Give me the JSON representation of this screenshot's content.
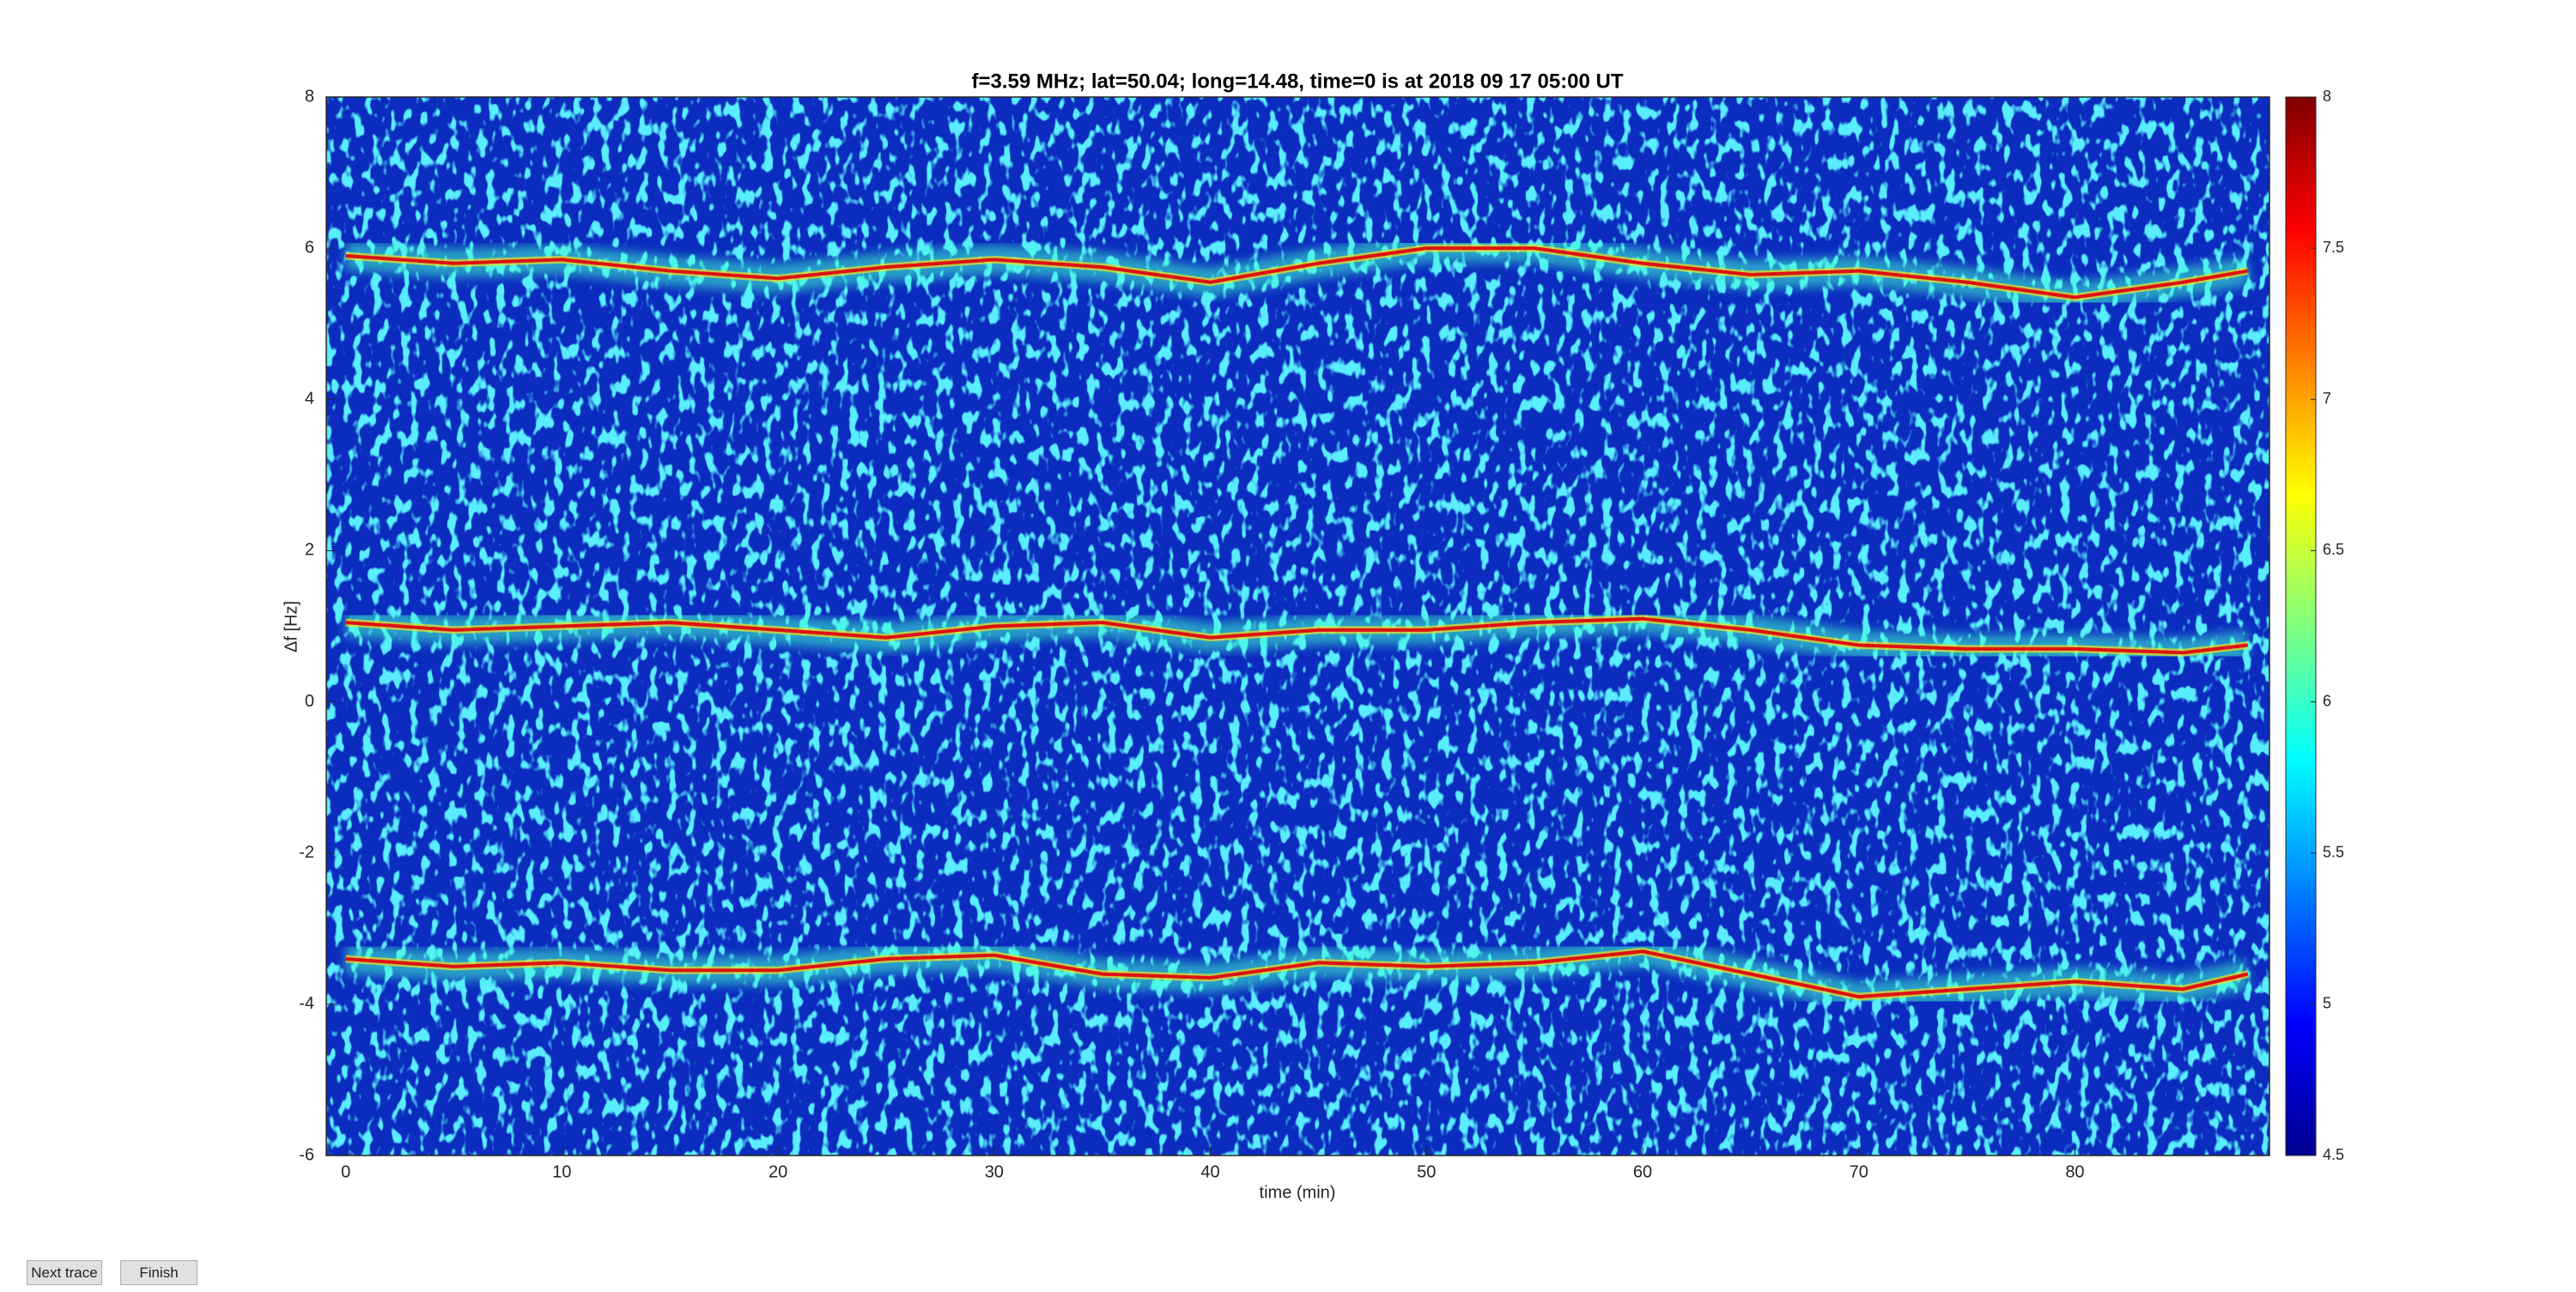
{
  "chart_data": {
    "type": "heatmap",
    "title": "f=3.59 MHz;  lat=50.04; long=14.48, time=0 is at 2018 09 17 05:00 UT",
    "x_label": "time (min)",
    "y_label": "Δf [Hz]",
    "xlim": [
      -0.9,
      89
    ],
    "xticks": [
      0,
      10,
      20,
      30,
      40,
      50,
      60,
      70,
      80
    ],
    "ylim": [
      -6,
      8
    ],
    "yticks": [
      -6,
      -4,
      -2,
      0,
      2,
      4,
      6,
      8
    ],
    "colormap": "jet",
    "clim": [
      4.5,
      8
    ],
    "cticks": [
      4.5,
      5,
      5.5,
      6,
      6.5,
      7,
      7.5,
      8
    ],
    "x": [
      0,
      5,
      10,
      15,
      20,
      25,
      30,
      35,
      40,
      45,
      50,
      55,
      60,
      65,
      70,
      75,
      80,
      85,
      88
    ],
    "series": [
      {
        "color": "#e01010",
        "values": [
          5.9,
          5.8,
          5.85,
          5.7,
          5.6,
          5.75,
          5.85,
          5.75,
          5.55,
          5.8,
          6.0,
          6.0,
          5.8,
          5.65,
          5.7,
          5.55,
          5.35,
          5.55,
          5.7
        ]
      },
      {
        "color": "#e01010",
        "values": [
          1.05,
          0.95,
          1.0,
          1.05,
          0.95,
          0.85,
          1.0,
          1.05,
          0.85,
          0.95,
          0.95,
          1.05,
          1.1,
          0.95,
          0.75,
          0.7,
          0.7,
          0.65,
          0.75
        ]
      },
      {
        "color": "#e01010",
        "values": [
          -3.4,
          -3.5,
          -3.45,
          -3.55,
          -3.55,
          -3.4,
          -3.35,
          -3.6,
          -3.65,
          -3.45,
          -3.5,
          -3.45,
          -3.3,
          -3.6,
          -3.9,
          -3.8,
          -3.7,
          -3.8,
          -3.6
        ]
      }
    ]
  },
  "buttons": [
    "Next trace",
    "Finish"
  ]
}
